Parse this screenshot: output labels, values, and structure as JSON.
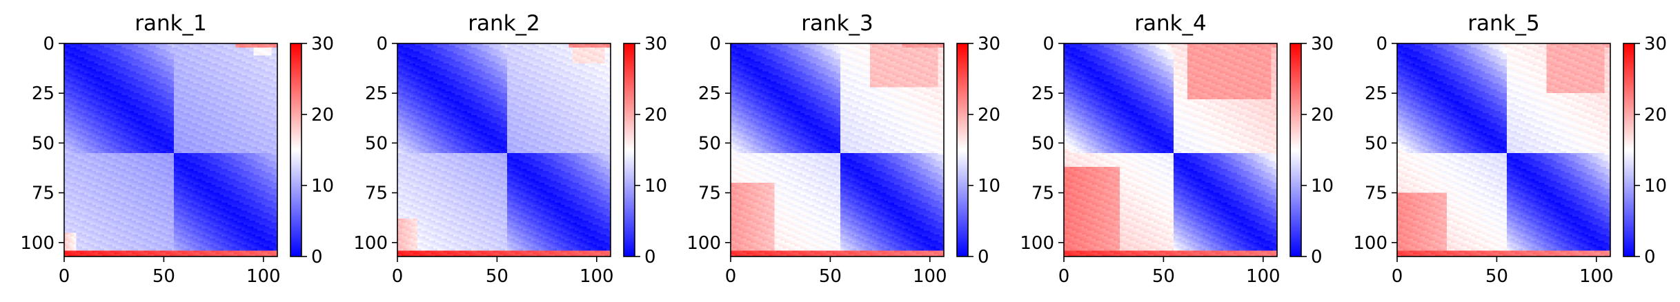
{
  "chart_data": [
    {
      "type": "heatmap",
      "title": "rank_1",
      "xlabel": "",
      "ylabel": "",
      "xlim": [
        0,
        107
      ],
      "ylim": [
        107,
        0
      ],
      "xticks": [
        "0",
        "50",
        "100"
      ],
      "xtick_values": [
        0,
        50,
        100
      ],
      "yticks": [
        "0",
        "25",
        "50",
        "75",
        "100"
      ],
      "ytick_values": [
        0,
        25,
        50,
        75,
        100
      ],
      "colorbar": {
        "ticks": [
          "0",
          "10",
          "20",
          "30"
        ],
        "tick_values": [
          0,
          10,
          20,
          30
        ],
        "range": [
          0,
          30
        ]
      },
      "colormap": [
        "#0000ff",
        "#ffffff",
        "#ff0000"
      ],
      "matrix_size": 107,
      "blocks": [
        [
          0,
          55
        ],
        [
          55,
          107
        ]
      ],
      "near_value": 1,
      "far_value": 13,
      "cross_block_value": 9,
      "edge_band": {
        "rows": [
          104,
          107
        ],
        "value": 28
      },
      "corner_patch": {
        "rows": [
          95,
          104
        ],
        "cols": [
          0,
          6
        ],
        "value": 18
      }
    },
    {
      "type": "heatmap",
      "title": "rank_2",
      "xlabel": "",
      "ylabel": "",
      "xlim": [
        0,
        107
      ],
      "ylim": [
        107,
        0
      ],
      "xticks": [
        "0",
        "50",
        "100"
      ],
      "xtick_values": [
        0,
        50,
        100
      ],
      "yticks": [
        "0",
        "25",
        "50",
        "75",
        "100"
      ],
      "ytick_values": [
        0,
        25,
        50,
        75,
        100
      ],
      "colorbar": {
        "ticks": [
          "0",
          "10",
          "20",
          "30"
        ],
        "tick_values": [
          0,
          10,
          20,
          30
        ],
        "range": [
          0,
          30
        ]
      },
      "colormap": [
        "#0000ff",
        "#ffffff",
        "#ff0000"
      ],
      "matrix_size": 107,
      "blocks": [
        [
          0,
          55
        ],
        [
          55,
          107
        ]
      ],
      "near_value": 1,
      "far_value": 15,
      "cross_block_value": 10,
      "edge_band": {
        "rows": [
          104,
          107
        ],
        "value": 28
      },
      "corner_patch": {
        "rows": [
          88,
          104
        ],
        "cols": [
          0,
          10
        ],
        "value": 19
      }
    },
    {
      "type": "heatmap",
      "title": "rank_3",
      "xlabel": "",
      "ylabel": "",
      "xlim": [
        0,
        107
      ],
      "ylim": [
        107,
        0
      ],
      "xticks": [
        "0",
        "50",
        "100"
      ],
      "xtick_values": [
        0,
        50,
        100
      ],
      "yticks": [
        "0",
        "25",
        "50",
        "75",
        "100"
      ],
      "ytick_values": [
        0,
        25,
        50,
        75,
        100
      ],
      "colorbar": {
        "ticks": [
          "0",
          "10",
          "20",
          "30"
        ],
        "tick_values": [
          0,
          10,
          20,
          30
        ],
        "range": [
          0,
          30
        ]
      },
      "colormap": [
        "#0000ff",
        "#ffffff",
        "#ff0000"
      ],
      "matrix_size": 107,
      "blocks": [
        [
          0,
          55
        ],
        [
          55,
          107
        ]
      ],
      "near_value": 1,
      "far_value": 17,
      "cross_block_value": 13,
      "edge_band": {
        "rows": [
          104,
          107
        ],
        "value": 27
      },
      "corner_patch": {
        "rows": [
          70,
          104
        ],
        "cols": [
          0,
          22
        ],
        "value": 21
      }
    },
    {
      "type": "heatmap",
      "title": "rank_4",
      "xlabel": "",
      "ylabel": "",
      "xlim": [
        0,
        107
      ],
      "ylim": [
        107,
        0
      ],
      "xticks": [
        "0",
        "50",
        "100"
      ],
      "xtick_values": [
        0,
        50,
        100
      ],
      "yticks": [
        "0",
        "25",
        "50",
        "75",
        "100"
      ],
      "ytick_values": [
        0,
        25,
        50,
        75,
        100
      ],
      "colorbar": {
        "ticks": [
          "0",
          "10",
          "20",
          "30"
        ],
        "tick_values": [
          0,
          10,
          20,
          30
        ],
        "range": [
          0,
          30
        ]
      },
      "colormap": [
        "#0000ff",
        "#ffffff",
        "#ff0000"
      ],
      "matrix_size": 107,
      "blocks": [
        [
          0,
          55
        ],
        [
          55,
          107
        ]
      ],
      "near_value": 1,
      "far_value": 19,
      "cross_block_value": 14,
      "edge_band": {
        "rows": [
          104,
          107
        ],
        "value": 27
      },
      "corner_patch": {
        "rows": [
          62,
          104
        ],
        "cols": [
          0,
          28
        ],
        "value": 23
      }
    },
    {
      "type": "heatmap",
      "title": "rank_5",
      "xlabel": "",
      "ylabel": "",
      "xlim": [
        0,
        107
      ],
      "ylim": [
        107,
        0
      ],
      "xticks": [
        "0",
        "50",
        "100"
      ],
      "xtick_values": [
        0,
        50,
        100
      ],
      "yticks": [
        "0",
        "25",
        "50",
        "75",
        "100"
      ],
      "ytick_values": [
        0,
        25,
        50,
        75,
        100
      ],
      "colorbar": {
        "ticks": [
          "0",
          "10",
          "20",
          "30"
        ],
        "tick_values": [
          0,
          10,
          20,
          30
        ],
        "range": [
          0,
          30
        ]
      },
      "colormap": [
        "#0000ff",
        "#ffffff",
        "#ff0000"
      ],
      "matrix_size": 107,
      "blocks": [
        [
          0,
          55
        ],
        [
          55,
          107
        ]
      ],
      "near_value": 1,
      "far_value": 18,
      "cross_block_value": 13,
      "edge_band": {
        "rows": [
          104,
          107
        ],
        "value": 26
      },
      "corner_patch": {
        "rows": [
          75,
          104
        ],
        "cols": [
          0,
          25
        ],
        "value": 22
      }
    }
  ]
}
